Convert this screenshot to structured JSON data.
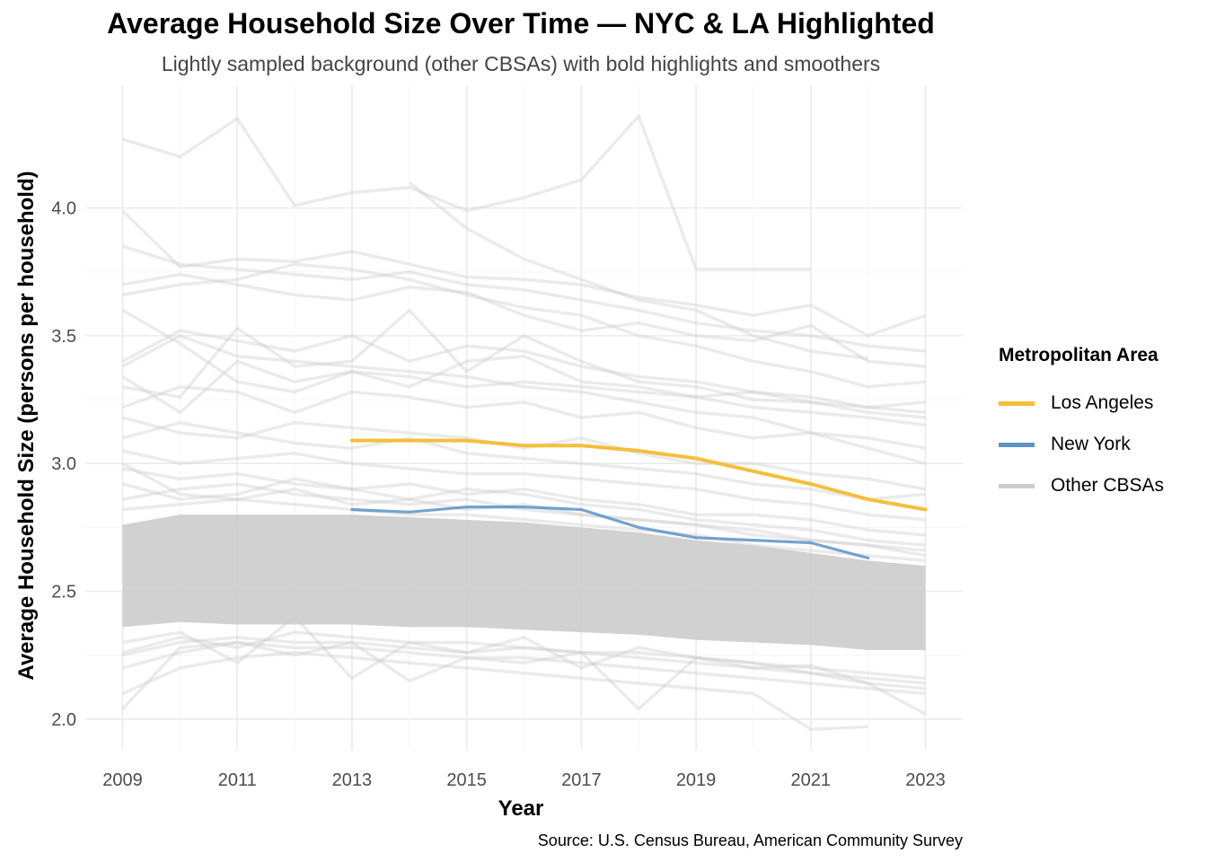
{
  "chart_data": {
    "type": "line",
    "title": "Average Household Size Over Time — NYC & LA Highlighted",
    "subtitle": "Lightly sampled background (other CBSAs) with bold highlights and smoothers",
    "xlabel": "Year",
    "ylabel": "Average Household Size (persons per household)",
    "caption": "Source: U.S. Census Bureau, American Community Survey",
    "xlim": [
      2008.35,
      2023.65
    ],
    "ylim": [
      1.88,
      4.48
    ],
    "x_ticks": [
      2009,
      2011,
      2013,
      2015,
      2017,
      2019,
      2021,
      2023
    ],
    "y_ticks": [
      2.0,
      2.5,
      3.0,
      3.5,
      4.0
    ],
    "y_tick_labels": [
      "2.0",
      "2.5",
      "3.0",
      "3.5",
      "4.0"
    ],
    "grid": true,
    "legend": {
      "title": "Metropolitan Area",
      "position": "right",
      "entries": [
        {
          "label": "Los Angeles",
          "color": "#F6BE3C"
        },
        {
          "label": "New York",
          "color": "#5B93C7"
        },
        {
          "label": "Other CBSAs",
          "color": "#CCCCCC"
        }
      ]
    },
    "series": [
      {
        "name": "Los Angeles",
        "color": "#F6BE3C",
        "x": [
          2013,
          2014,
          2015,
          2016,
          2017,
          2018,
          2019,
          2020,
          2021,
          2022,
          2023
        ],
        "y": [
          3.09,
          3.09,
          3.09,
          3.07,
          3.07,
          3.05,
          3.02,
          2.97,
          2.92,
          2.86,
          2.82
        ]
      },
      {
        "name": "New York",
        "color": "#5B93C7",
        "x": [
          2013,
          2014,
          2015,
          2016,
          2017,
          2018,
          2019,
          2020,
          2021,
          2022
        ],
        "y": [
          2.82,
          2.81,
          2.83,
          2.83,
          2.82,
          2.75,
          2.71,
          2.7,
          2.69,
          2.63
        ]
      },
      {
        "name": "Other CBSAs",
        "color": "#CCCCCC",
        "note_band": true,
        "x": [
          2009,
          2010,
          2011,
          2012,
          2013,
          2014,
          2015,
          2016,
          2017,
          2018,
          2019,
          2020,
          2021,
          2022,
          2023
        ],
        "band_low": [
          2.36,
          2.38,
          2.37,
          2.37,
          2.37,
          2.36,
          2.36,
          2.35,
          2.34,
          2.33,
          2.31,
          2.3,
          2.29,
          2.27,
          2.27
        ],
        "band_high": [
          2.76,
          2.8,
          2.8,
          2.8,
          2.8,
          2.79,
          2.78,
          2.77,
          2.75,
          2.73,
          2.7,
          2.68,
          2.65,
          2.62,
          2.6
        ],
        "lines": [
          [
            4.27,
            4.2,
            4.35,
            4.01,
            4.06,
            4.08,
            3.99,
            4.04,
            4.11,
            4.36,
            3.76,
            3.76,
            3.76,
            null,
            null
          ],
          [
            null,
            null,
            null,
            null,
            null,
            4.1,
            3.92,
            3.8,
            3.72,
            3.64,
            3.6,
            3.5,
            3.44,
            3.41,
            null
          ],
          [
            3.99,
            3.77,
            3.8,
            3.79,
            3.83,
            3.78,
            3.73,
            3.72,
            3.7,
            3.65,
            3.62,
            3.58,
            3.62,
            3.5,
            3.58
          ],
          [
            3.85,
            3.78,
            3.76,
            3.74,
            3.72,
            3.75,
            3.7,
            3.68,
            3.64,
            3.6,
            3.55,
            3.52,
            3.5,
            3.46,
            3.44
          ],
          [
            3.7,
            3.74,
            3.7,
            3.66,
            3.64,
            3.69,
            3.67,
            3.58,
            3.52,
            3.55,
            3.5,
            3.48,
            3.54,
            3.4,
            3.38
          ],
          [
            3.66,
            3.7,
            3.72,
            3.78,
            3.76,
            3.72,
            3.66,
            3.61,
            3.58,
            3.5,
            3.46,
            3.4,
            3.36,
            3.3,
            3.32
          ],
          [
            3.4,
            3.52,
            3.48,
            3.44,
            3.5,
            3.4,
            3.46,
            3.44,
            3.38,
            3.34,
            3.32,
            3.28,
            3.26,
            3.22,
            3.2
          ],
          [
            3.3,
            3.26,
            3.53,
            3.38,
            3.4,
            3.6,
            3.36,
            3.5,
            3.4,
            3.32,
            3.3,
            3.25,
            3.24,
            3.2,
            3.18
          ],
          [
            3.6,
            3.47,
            3.32,
            3.28,
            3.36,
            3.3,
            3.4,
            3.42,
            3.32,
            3.3,
            3.26,
            3.22,
            3.2,
            3.18,
            3.15
          ],
          [
            3.38,
            3.5,
            3.42,
            3.4,
            3.38,
            3.36,
            3.34,
            3.3,
            3.28,
            3.24,
            3.2,
            3.18,
            3.12,
            3.1,
            3.06
          ],
          [
            3.22,
            3.3,
            3.28,
            3.2,
            3.28,
            3.26,
            3.22,
            3.24,
            3.18,
            3.2,
            3.14,
            3.1,
            3.12,
            3.06,
            3.0
          ],
          [
            3.18,
            3.12,
            3.1,
            3.16,
            3.14,
            3.12,
            3.1,
            3.06,
            3.1,
            3.04,
            3.0,
            3.0,
            2.96,
            2.94,
            2.9
          ],
          [
            3.1,
            3.16,
            3.12,
            3.08,
            3.06,
            3.1,
            3.04,
            3.02,
            3.0,
            2.98,
            2.96,
            2.92,
            2.9,
            2.86,
            2.88
          ],
          [
            3.05,
            3.0,
            3.02,
            3.04,
            3.0,
            2.98,
            2.96,
            2.96,
            2.94,
            2.92,
            2.9,
            2.86,
            2.84,
            2.8,
            2.78
          ],
          [
            2.98,
            2.94,
            2.96,
            2.92,
            2.9,
            2.92,
            2.88,
            2.9,
            2.86,
            2.84,
            2.8,
            2.8,
            2.78,
            2.74,
            2.72
          ],
          [
            3.0,
            2.88,
            2.86,
            2.9,
            2.84,
            2.86,
            2.82,
            2.84,
            2.8,
            2.78,
            2.76,
            2.74,
            2.7,
            2.68,
            2.66
          ],
          [
            2.3,
            2.34,
            2.22,
            2.4,
            2.16,
            2.3,
            2.26,
            2.32,
            2.2,
            2.28,
            2.24,
            2.22,
            2.18,
            2.14,
            2.12
          ],
          [
            2.04,
            2.28,
            2.3,
            2.25,
            2.3,
            2.15,
            2.24,
            2.22,
            2.26,
            2.04,
            2.24,
            2.2,
            2.21,
            2.14,
            2.02
          ],
          [
            2.1,
            2.2,
            2.24,
            2.26,
            2.24,
            2.22,
            2.2,
            2.18,
            2.16,
            2.14,
            2.12,
            2.1,
            1.96,
            1.97,
            null
          ],
          [
            2.2,
            2.26,
            2.3,
            2.28,
            2.28,
            2.26,
            2.24,
            2.24,
            2.22,
            2.2,
            2.18,
            2.16,
            2.14,
            2.12,
            2.1
          ],
          [
            2.25,
            2.3,
            2.32,
            2.3,
            2.3,
            2.28,
            2.26,
            2.28,
            2.26,
            2.24,
            2.22,
            2.2,
            2.18,
            2.16,
            2.14
          ],
          [
            2.86,
            2.9,
            2.92,
            2.88,
            2.86,
            2.84,
            2.86,
            2.82,
            2.8,
            2.78,
            2.76,
            2.72,
            2.7,
            2.68,
            2.64
          ],
          [
            2.92,
            2.86,
            2.88,
            2.94,
            2.9,
            2.86,
            2.9,
            2.88,
            2.84,
            2.82,
            2.78,
            2.76,
            2.74,
            2.7,
            2.68
          ],
          [
            2.82,
            2.84,
            2.86,
            2.84,
            2.82,
            2.8,
            2.8,
            2.78,
            2.76,
            2.74,
            2.72,
            2.68,
            2.66,
            2.64,
            2.62
          ],
          [
            3.34,
            3.2,
            3.4,
            3.32,
            3.36,
            3.34,
            3.3,
            3.32,
            3.3,
            3.28,
            3.26,
            3.28,
            3.24,
            3.22,
            3.24
          ],
          [
            2.26,
            2.32,
            2.28,
            2.34,
            2.32,
            2.3,
            2.3,
            2.28,
            2.26,
            2.26,
            2.24,
            2.22,
            2.2,
            2.18,
            2.16
          ]
        ]
      }
    ]
  }
}
